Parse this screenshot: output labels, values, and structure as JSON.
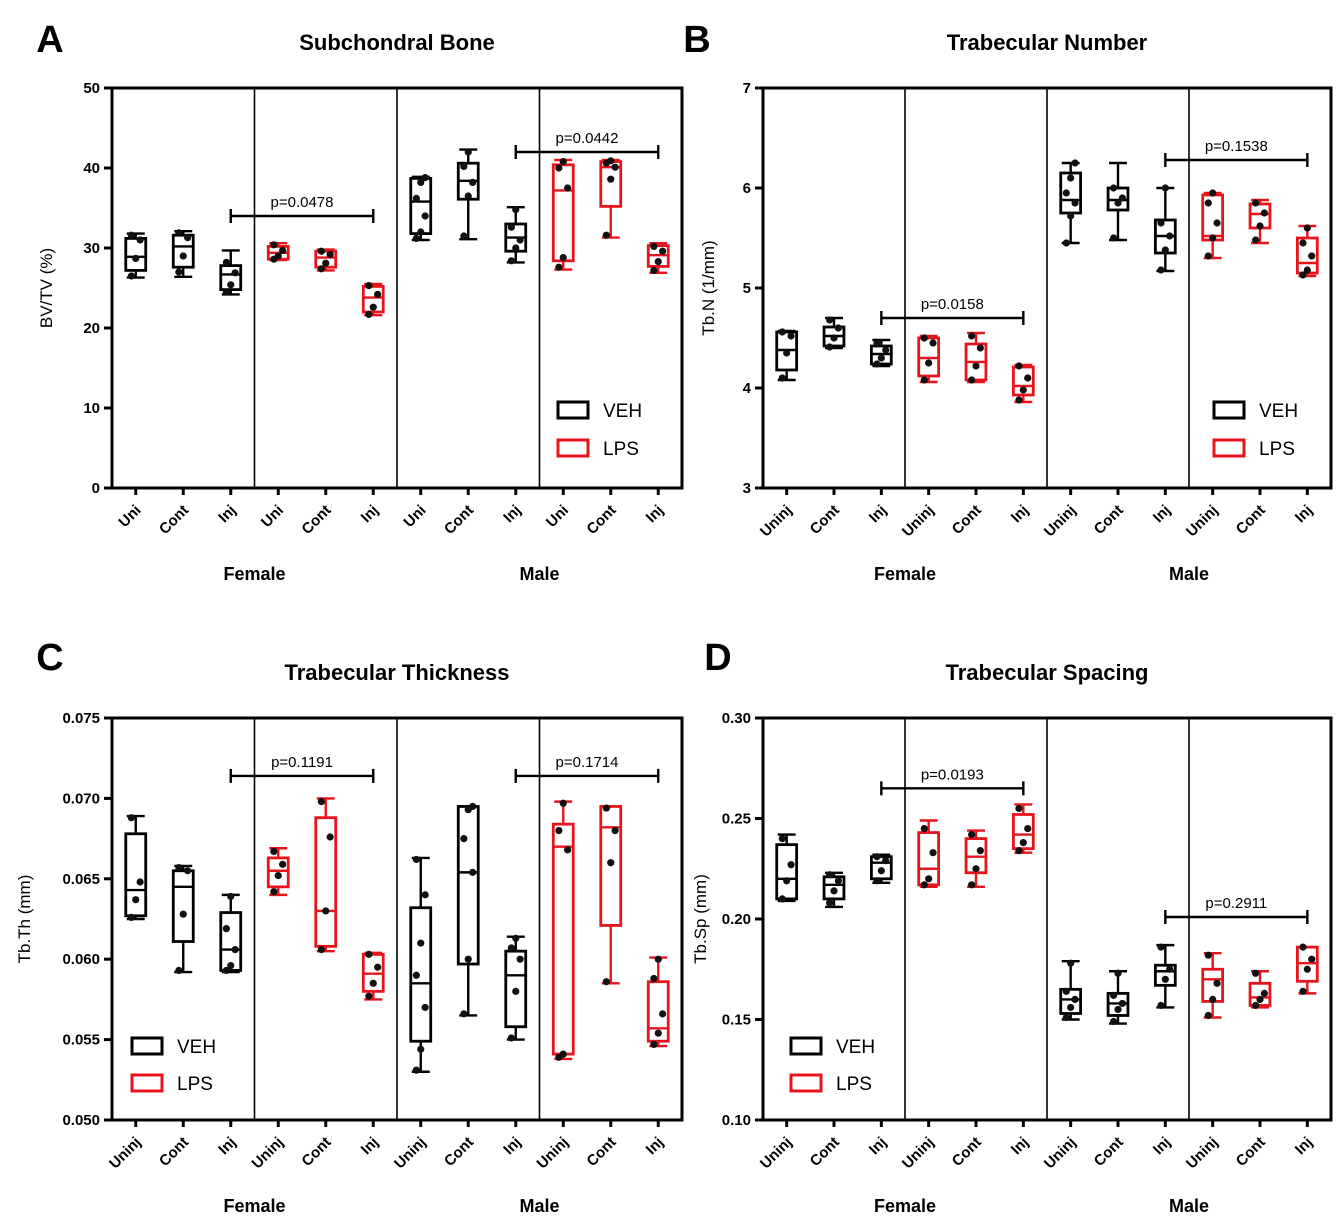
{
  "colors": {
    "VEH": "#000000",
    "LPS": "#e8141b"
  },
  "chart_data": [
    {
      "type": "box",
      "panel_letter": "A",
      "title": "Subchondral Bone",
      "ylabel": "BV/TV (%)",
      "ylim": [
        0,
        50
      ],
      "yticks": [
        0,
        10,
        20,
        30,
        40,
        50
      ],
      "tick_decimals": 0,
      "legend_position": "bottom-right",
      "legend": [
        {
          "name": "VEH",
          "color_key": "VEH"
        },
        {
          "name": "LPS",
          "color_key": "LPS"
        }
      ],
      "groups": [
        {
          "label": "Female",
          "categories": [
            "Uni",
            "Cont",
            "Inj",
            "Uni",
            "Cont",
            "Inj"
          ]
        },
        {
          "label": "Male",
          "categories": [
            "Uni",
            "Cont",
            "Inj",
            "Uni",
            "Cont",
            "Inj"
          ]
        }
      ],
      "boxes": [
        {
          "group": "VEH",
          "min": 26.3,
          "q1": 27.2,
          "median": 28.9,
          "q3": 31.2,
          "max": 31.8,
          "points": [
            26.5,
            28.7,
            31.0,
            31.6
          ]
        },
        {
          "group": "VEH",
          "min": 26.4,
          "q1": 27.6,
          "median": 30.2,
          "q3": 31.6,
          "max": 32.1,
          "points": [
            27.0,
            29.0,
            31.3,
            31.9
          ]
        },
        {
          "group": "VEH",
          "min": 24.2,
          "q1": 24.8,
          "median": 26.7,
          "q3": 27.8,
          "max": 29.7,
          "points": [
            24.5,
            25.4,
            26.9,
            28.2
          ]
        },
        {
          "group": "LPS",
          "min": 28.5,
          "q1": 28.6,
          "median": 29.4,
          "q3": 30.2,
          "max": 30.6,
          "points": [
            28.6,
            29.0,
            29.7,
            30.4
          ]
        },
        {
          "group": "LPS",
          "min": 27.2,
          "q1": 27.6,
          "median": 28.8,
          "q3": 29.6,
          "max": 29.8,
          "points": [
            27.4,
            28.1,
            29.2,
            29.6
          ]
        },
        {
          "group": "LPS",
          "min": 21.6,
          "q1": 22.0,
          "median": 23.8,
          "q3": 25.2,
          "max": 25.5,
          "points": [
            21.7,
            22.6,
            24.2,
            25.3
          ]
        },
        {
          "group": "VEH",
          "min": 31.0,
          "q1": 31.8,
          "median": 35.8,
          "q3": 38.7,
          "max": 38.9,
          "points": [
            31.2,
            32.0,
            34.0,
            36.2,
            38.2,
            38.8
          ]
        },
        {
          "group": "VEH",
          "min": 31.1,
          "q1": 36.1,
          "median": 38.4,
          "q3": 40.6,
          "max": 42.3,
          "points": [
            31.5,
            36.5,
            38.2,
            40.2,
            42.0
          ]
        },
        {
          "group": "VEH",
          "min": 28.2,
          "q1": 29.6,
          "median": 31.3,
          "q3": 33.0,
          "max": 35.1,
          "points": [
            28.4,
            30.0,
            31.0,
            32.6,
            34.8
          ]
        },
        {
          "group": "LPS",
          "min": 27.3,
          "q1": 28.4,
          "median": 37.2,
          "q3": 40.4,
          "max": 41.0,
          "points": [
            27.6,
            28.8,
            37.5,
            40.0,
            40.8
          ]
        },
        {
          "group": "LPS",
          "min": 31.3,
          "q1": 35.2,
          "median": 40.1,
          "q3": 40.8,
          "max": 41.0,
          "points": [
            31.6,
            38.6,
            40.1,
            40.6,
            40.9
          ]
        },
        {
          "group": "LPS",
          "min": 26.9,
          "q1": 27.7,
          "median": 29.1,
          "q3": 30.3,
          "max": 30.6,
          "points": [
            27.2,
            28.3,
            29.6,
            30.2
          ]
        }
      ],
      "comparisons": [
        {
          "from": 2,
          "to": 5,
          "value": 34.0,
          "label": "p=0.0478"
        },
        {
          "from": 8,
          "to": 11,
          "value": 42.0,
          "label": "p=0.0442"
        }
      ]
    },
    {
      "type": "box",
      "panel_letter": "B",
      "title": "Trabecular Number",
      "ylabel": "Tb.N (1/mm)",
      "ylim": [
        3,
        7
      ],
      "yticks": [
        3,
        4,
        5,
        6,
        7
      ],
      "tick_decimals": 0,
      "legend_position": "bottom-right",
      "legend": [
        {
          "name": "VEH",
          "color_key": "VEH"
        },
        {
          "name": "LPS",
          "color_key": "LPS"
        }
      ],
      "groups": [
        {
          "label": "Female",
          "categories": [
            "Uninj",
            "Cont",
            "Inj",
            "Uninj",
            "Cont",
            "Inj"
          ]
        },
        {
          "label": "Male",
          "categories": [
            "Uninj",
            "Cont",
            "Inj",
            "Uninj",
            "Cont",
            "Inj"
          ]
        }
      ],
      "boxes": [
        {
          "group": "VEH",
          "min": 4.08,
          "q1": 4.18,
          "median": 4.38,
          "q3": 4.56,
          "max": 4.57,
          "points": [
            4.1,
            4.35,
            4.52,
            4.56
          ]
        },
        {
          "group": "VEH",
          "min": 4.4,
          "q1": 4.42,
          "median": 4.52,
          "q3": 4.61,
          "max": 4.7,
          "points": [
            4.41,
            4.5,
            4.6,
            4.68
          ]
        },
        {
          "group": "VEH",
          "min": 4.22,
          "q1": 4.24,
          "median": 4.34,
          "q3": 4.42,
          "max": 4.48,
          "points": [
            4.24,
            4.3,
            4.38,
            4.45
          ]
        },
        {
          "group": "LPS",
          "min": 4.06,
          "q1": 4.12,
          "median": 4.3,
          "q3": 4.5,
          "max": 4.52,
          "points": [
            4.08,
            4.25,
            4.45,
            4.5
          ]
        },
        {
          "group": "LPS",
          "min": 4.06,
          "q1": 4.08,
          "median": 4.26,
          "q3": 4.44,
          "max": 4.55,
          "points": [
            4.08,
            4.22,
            4.4,
            4.52
          ]
        },
        {
          "group": "LPS",
          "min": 3.86,
          "q1": 3.93,
          "median": 4.02,
          "q3": 4.21,
          "max": 4.23,
          "points": [
            3.88,
            3.98,
            4.1,
            4.22
          ]
        },
        {
          "group": "VEH",
          "min": 5.45,
          "q1": 5.75,
          "median": 5.88,
          "q3": 6.15,
          "max": 6.25,
          "points": [
            5.45,
            5.72,
            5.85,
            5.95,
            6.1,
            6.25
          ]
        },
        {
          "group": "VEH",
          "min": 5.48,
          "q1": 5.78,
          "median": 5.88,
          "q3": 6.0,
          "max": 6.25,
          "points": [
            5.5,
            5.85,
            5.9,
            6.0
          ]
        },
        {
          "group": "VEH",
          "min": 5.17,
          "q1": 5.35,
          "median": 5.52,
          "q3": 5.68,
          "max": 6.0,
          "points": [
            5.18,
            5.38,
            5.52,
            5.65,
            6.0
          ]
        },
        {
          "group": "LPS",
          "min": 5.3,
          "q1": 5.48,
          "median": 5.52,
          "q3": 5.93,
          "max": 5.95,
          "points": [
            5.32,
            5.5,
            5.65,
            5.85,
            5.95
          ]
        },
        {
          "group": "LPS",
          "min": 5.45,
          "q1": 5.6,
          "median": 5.74,
          "q3": 5.84,
          "max": 5.88,
          "points": [
            5.48,
            5.62,
            5.75,
            5.85
          ]
        },
        {
          "group": "LPS",
          "min": 5.12,
          "q1": 5.15,
          "median": 5.25,
          "q3": 5.5,
          "max": 5.62,
          "points": [
            5.13,
            5.18,
            5.32,
            5.45,
            5.6
          ]
        }
      ],
      "comparisons": [
        {
          "from": 2,
          "to": 5,
          "value": 4.7,
          "label": "p=0.0158"
        },
        {
          "from": 8,
          "to": 11,
          "value": 6.28,
          "label": "p=0.1538"
        }
      ]
    },
    {
      "type": "box",
      "panel_letter": "C",
      "title": "Trabecular Thickness",
      "ylabel": "Tb.Th (mm)",
      "ylim": [
        0.05,
        0.075
      ],
      "yticks": [
        0.05,
        0.055,
        0.06,
        0.065,
        0.07,
        0.075
      ],
      "tick_decimals": 3,
      "legend_position": "bottom-left",
      "legend": [
        {
          "name": "VEH",
          "color_key": "VEH"
        },
        {
          "name": "LPS",
          "color_key": "LPS"
        }
      ],
      "groups": [
        {
          "label": "Female",
          "categories": [
            "Uninj",
            "Cont",
            "Inj",
            "Uninj",
            "Cont",
            "Inj"
          ]
        },
        {
          "label": "Male",
          "categories": [
            "Uninj",
            "Cont",
            "Inj",
            "Uninj",
            "Cont",
            "Inj"
          ]
        }
      ],
      "boxes": [
        {
          "group": "VEH",
          "min": 0.0625,
          "q1": 0.0627,
          "median": 0.0643,
          "q3": 0.0678,
          "max": 0.0689,
          "points": [
            0.0626,
            0.0637,
            0.0648,
            0.0688
          ]
        },
        {
          "group": "VEH",
          "min": 0.0592,
          "q1": 0.0611,
          "median": 0.0645,
          "q3": 0.0655,
          "max": 0.0658,
          "points": [
            0.0593,
            0.0628,
            0.0655,
            0.0657
          ]
        },
        {
          "group": "VEH",
          "min": 0.0592,
          "q1": 0.0593,
          "median": 0.0606,
          "q3": 0.0629,
          "max": 0.064,
          "points": [
            0.0593,
            0.0596,
            0.0606,
            0.0619,
            0.0639
          ]
        },
        {
          "group": "LPS",
          "min": 0.064,
          "q1": 0.0645,
          "median": 0.0655,
          "q3": 0.0663,
          "max": 0.0669,
          "points": [
            0.0642,
            0.0652,
            0.0659,
            0.0667
          ]
        },
        {
          "group": "LPS",
          "min": 0.0605,
          "q1": 0.0608,
          "median": 0.063,
          "q3": 0.0688,
          "max": 0.07,
          "points": [
            0.0606,
            0.063,
            0.0676,
            0.0698
          ]
        },
        {
          "group": "LPS",
          "min": 0.0575,
          "q1": 0.058,
          "median": 0.0591,
          "q3": 0.0603,
          "max": 0.0604,
          "points": [
            0.0577,
            0.0585,
            0.0595,
            0.0603
          ]
        },
        {
          "group": "VEH",
          "min": 0.053,
          "q1": 0.0549,
          "median": 0.0585,
          "q3": 0.0632,
          "max": 0.0663,
          "points": [
            0.0531,
            0.0544,
            0.057,
            0.059,
            0.061,
            0.064,
            0.0662
          ]
        },
        {
          "group": "VEH",
          "min": 0.0565,
          "q1": 0.0597,
          "median": 0.0654,
          "q3": 0.0695,
          "max": 0.0695,
          "points": [
            0.0566,
            0.06,
            0.0654,
            0.0675,
            0.0693,
            0.0695
          ]
        },
        {
          "group": "VEH",
          "min": 0.055,
          "q1": 0.0558,
          "median": 0.059,
          "q3": 0.0605,
          "max": 0.0614,
          "points": [
            0.0551,
            0.058,
            0.06,
            0.0607,
            0.0613
          ]
        },
        {
          "group": "LPS",
          "min": 0.0538,
          "q1": 0.0541,
          "median": 0.067,
          "q3": 0.0684,
          "max": 0.0698,
          "points": [
            0.0539,
            0.0541,
            0.0668,
            0.068,
            0.0697
          ]
        },
        {
          "group": "LPS",
          "min": 0.0585,
          "q1": 0.0621,
          "median": 0.0682,
          "q3": 0.0695,
          "max": 0.0695,
          "points": [
            0.0586,
            0.066,
            0.068,
            0.0694
          ]
        },
        {
          "group": "LPS",
          "min": 0.0546,
          "q1": 0.0549,
          "median": 0.0557,
          "q3": 0.0586,
          "max": 0.0601,
          "points": [
            0.0547,
            0.0554,
            0.0566,
            0.0588,
            0.06
          ]
        }
      ],
      "comparisons": [
        {
          "from": 2,
          "to": 5,
          "value": 0.0714,
          "label": "p=0.1191"
        },
        {
          "from": 8,
          "to": 11,
          "value": 0.0714,
          "label": "p=0.1714"
        }
      ]
    },
    {
      "type": "box",
      "panel_letter": "D",
      "title": "Trabecular Spacing",
      "ylabel": "Tb.Sp (mm)",
      "ylim": [
        0.1,
        0.3
      ],
      "yticks": [
        0.1,
        0.15,
        0.2,
        0.25,
        0.3
      ],
      "tick_decimals": 2,
      "legend_position": "bottom-left",
      "legend": [
        {
          "name": "VEH",
          "color_key": "VEH"
        },
        {
          "name": "LPS",
          "color_key": "LPS"
        }
      ],
      "groups": [
        {
          "label": "Female",
          "categories": [
            "Uninj",
            "Cont",
            "Inj",
            "Uninj",
            "Cont",
            "Inj"
          ]
        },
        {
          "label": "Male",
          "categories": [
            "Uninj",
            "Cont",
            "Inj",
            "Uninj",
            "Cont",
            "Inj"
          ]
        }
      ],
      "boxes": [
        {
          "group": "VEH",
          "min": 0.209,
          "q1": 0.21,
          "median": 0.22,
          "q3": 0.237,
          "max": 0.242,
          "points": [
            0.21,
            0.219,
            0.227,
            0.24
          ]
        },
        {
          "group": "VEH",
          "min": 0.206,
          "q1": 0.21,
          "median": 0.217,
          "q3": 0.221,
          "max": 0.223,
          "points": [
            0.208,
            0.214,
            0.219,
            0.222
          ]
        },
        {
          "group": "VEH",
          "min": 0.218,
          "q1": 0.22,
          "median": 0.228,
          "q3": 0.231,
          "max": 0.232,
          "points": [
            0.219,
            0.224,
            0.229,
            0.231
          ]
        },
        {
          "group": "LPS",
          "min": 0.216,
          "q1": 0.217,
          "median": 0.225,
          "q3": 0.243,
          "max": 0.249,
          "points": [
            0.217,
            0.22,
            0.233,
            0.245
          ]
        },
        {
          "group": "LPS",
          "min": 0.216,
          "q1": 0.223,
          "median": 0.231,
          "q3": 0.24,
          "max": 0.244,
          "points": [
            0.217,
            0.225,
            0.234,
            0.242
          ]
        },
        {
          "group": "LPS",
          "min": 0.233,
          "q1": 0.235,
          "median": 0.242,
          "q3": 0.252,
          "max": 0.257,
          "points": [
            0.234,
            0.238,
            0.245,
            0.255
          ]
        },
        {
          "group": "VEH",
          "min": 0.15,
          "q1": 0.153,
          "median": 0.16,
          "q3": 0.165,
          "max": 0.179,
          "points": [
            0.151,
            0.156,
            0.16,
            0.164,
            0.178
          ]
        },
        {
          "group": "VEH",
          "min": 0.148,
          "q1": 0.152,
          "median": 0.158,
          "q3": 0.163,
          "max": 0.174,
          "points": [
            0.149,
            0.155,
            0.158,
            0.162,
            0.173
          ]
        },
        {
          "group": "VEH",
          "min": 0.156,
          "q1": 0.167,
          "median": 0.174,
          "q3": 0.177,
          "max": 0.187,
          "points": [
            0.157,
            0.17,
            0.175,
            0.186
          ]
        },
        {
          "group": "LPS",
          "min": 0.151,
          "q1": 0.159,
          "median": 0.17,
          "q3": 0.175,
          "max": 0.183,
          "points": [
            0.152,
            0.16,
            0.168,
            0.182
          ]
        },
        {
          "group": "LPS",
          "min": 0.156,
          "q1": 0.157,
          "median": 0.161,
          "q3": 0.168,
          "max": 0.174,
          "points": [
            0.157,
            0.16,
            0.163,
            0.173
          ]
        },
        {
          "group": "LPS",
          "min": 0.163,
          "q1": 0.169,
          "median": 0.178,
          "q3": 0.186,
          "max": 0.186,
          "points": [
            0.164,
            0.175,
            0.18,
            0.186
          ]
        }
      ],
      "comparisons": [
        {
          "from": 2,
          "to": 5,
          "value": 0.265,
          "label": "p=0.0193"
        },
        {
          "from": 8,
          "to": 11,
          "value": 0.201,
          "label": "p=0.2911"
        }
      ]
    }
  ]
}
